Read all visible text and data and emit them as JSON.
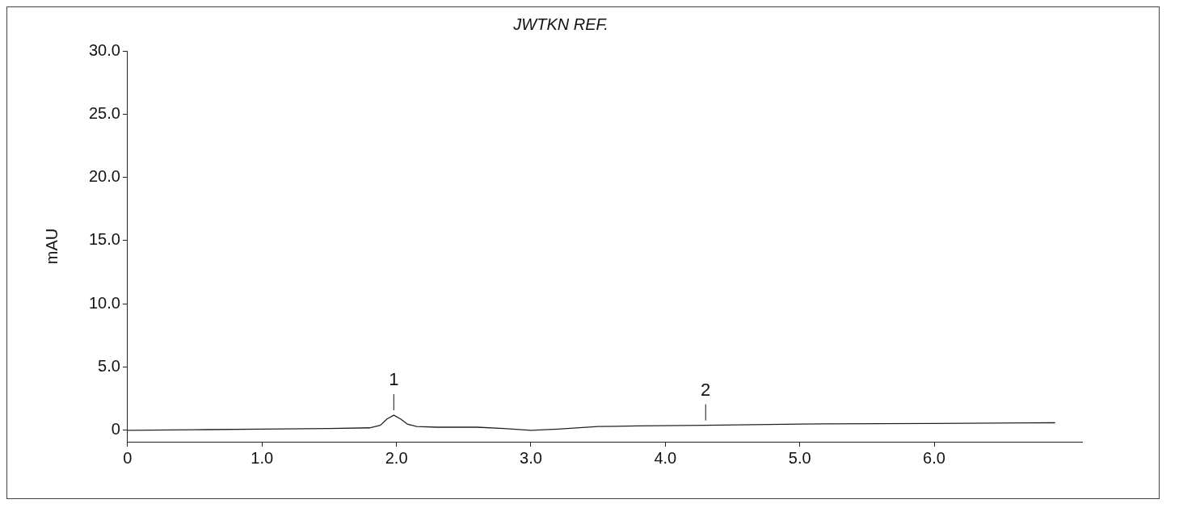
{
  "chart_data": {
    "type": "line",
    "title": "JWTKN REF.",
    "ylabel": "mAU",
    "series": [
      {
        "color": "#222222",
        "x": [
          0,
          0.5,
          1.0,
          1.5,
          1.8,
          1.88,
          1.93,
          1.98,
          2.03,
          2.08,
          2.15,
          2.3,
          2.6,
          2.8,
          3.0,
          3.2,
          3.5,
          3.8,
          4.3,
          5.0,
          6.0,
          6.9
        ],
        "values": [
          0,
          0.05,
          0.1,
          0.15,
          0.2,
          0.4,
          0.9,
          1.2,
          0.9,
          0.5,
          0.3,
          0.25,
          0.25,
          0.15,
          0,
          0.1,
          0.3,
          0.35,
          0.4,
          0.5,
          0.55,
          0.6
        ]
      }
    ],
    "xlim": [
      0,
      7.1
    ],
    "xticks": [
      {
        "value": 0,
        "label": "0"
      },
      {
        "value": 1,
        "label": "1.0"
      },
      {
        "value": 2,
        "label": "2.0"
      },
      {
        "value": 3,
        "label": "3.0"
      },
      {
        "value": 4,
        "label": "4.0"
      },
      {
        "value": 5,
        "label": "5.0"
      },
      {
        "value": 6,
        "label": "6.0"
      }
    ],
    "ylim": [
      -0.9,
      30
    ],
    "yticks": [
      {
        "value": 0,
        "label": "0"
      },
      {
        "value": 5,
        "label": "5.0"
      },
      {
        "value": 10,
        "label": "10.0"
      },
      {
        "value": 15,
        "label": "15.0"
      },
      {
        "value": 20,
        "label": "20.0"
      },
      {
        "value": 25,
        "label": "25.0"
      },
      {
        "value": 30,
        "label": "30.0"
      }
    ],
    "grid": false,
    "legend": false,
    "marker": "none",
    "line_style": "solid",
    "annotations": [
      {
        "text": "1",
        "x": 1.98,
        "y": 1.2
      },
      {
        "text": "2",
        "x": 4.3,
        "y": 0.4
      }
    ]
  }
}
